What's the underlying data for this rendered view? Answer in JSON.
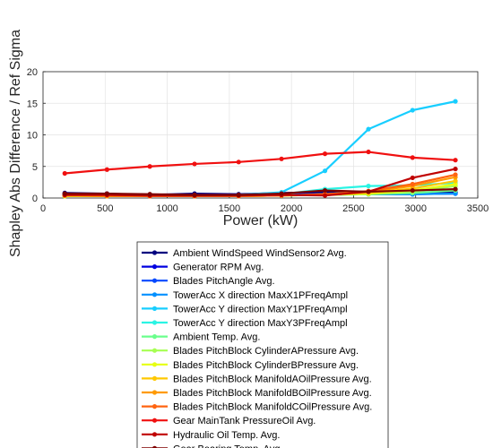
{
  "chart_data": {
    "type": "line",
    "xlabel": "Power (kW)",
    "ylabel": "Shapley Abs Difference / Ref Sigma",
    "xlim": [
      0,
      3500
    ],
    "ylim": [
      0,
      20
    ],
    "x_ticks": [
      0,
      500,
      1000,
      1500,
      2000,
      2500,
      3000,
      3500
    ],
    "y_ticks": [
      0,
      5,
      10,
      15,
      20
    ],
    "grid": true,
    "legend_position": "below",
    "x": [
      175,
      515,
      860,
      1220,
      1575,
      1920,
      2270,
      2620,
      2975,
      3320
    ],
    "series": [
      {
        "name": "Ambient WindSpeed WindSensor2 Avg.",
        "color": "#00007f",
        "values": [
          0.8,
          0.7,
          0.5,
          0.7,
          0.6,
          0.8,
          0.9,
          0.9,
          0.8,
          0.9
        ]
      },
      {
        "name": "Generator RPM Avg.",
        "color": "#0000e0",
        "values": [
          0.6,
          0.6,
          0.5,
          0.5,
          0.5,
          0.6,
          0.6,
          0.6,
          0.7,
          0.7
        ]
      },
      {
        "name": "Blades PitchAngle Avg.",
        "color": "#0048ff",
        "values": [
          0.5,
          0.5,
          0.4,
          0.5,
          0.5,
          0.5,
          0.6,
          0.6,
          0.6,
          0.7
        ]
      },
      {
        "name": "TowerAcc X direction MaxX1PFreqAmpl",
        "color": "#0090ff",
        "values": [
          0.4,
          0.4,
          0.3,
          0.4,
          0.4,
          0.5,
          0.5,
          0.6,
          0.6,
          0.7
        ]
      },
      {
        "name": "TowerAcc Y direction MaxY1PFreqAmpl",
        "color": "#18ceff",
        "values": [
          0.5,
          0.4,
          0.4,
          0.4,
          0.5,
          0.9,
          4.3,
          10.9,
          13.9,
          15.3
        ]
      },
      {
        "name": "TowerAcc Y direction MaxY3PFreqAmpl",
        "color": "#2af4e4",
        "values": [
          0.4,
          0.4,
          0.3,
          0.4,
          0.4,
          0.6,
          1.4,
          1.9,
          2.0,
          2.4
        ]
      },
      {
        "name": "Ambient Temp. Avg.",
        "color": "#6aff8c",
        "values": [
          0.3,
          0.3,
          0.3,
          0.3,
          0.3,
          0.4,
          0.5,
          0.6,
          0.8,
          1.2
        ]
      },
      {
        "name": "Blades PitchBlock CylinderAPressure Avg.",
        "color": "#a6ff52",
        "values": [
          0.3,
          0.3,
          0.3,
          0.3,
          0.3,
          0.4,
          0.5,
          0.6,
          1.0,
          1.9
        ]
      },
      {
        "name": "Blades PitchBlock CylinderBPressure Avg.",
        "color": "#e6ff12",
        "values": [
          0.3,
          0.3,
          0.3,
          0.3,
          0.3,
          0.4,
          0.5,
          0.7,
          1.2,
          2.2
        ]
      },
      {
        "name": "Blades PitchBlock ManifoldAOilPressure Avg.",
        "color": "#ffc800",
        "values": [
          0.4,
          0.3,
          0.3,
          0.3,
          0.3,
          0.4,
          0.5,
          0.8,
          1.5,
          2.7
        ]
      },
      {
        "name": "Blades PitchBlock ManifoldBOilPressure Avg.",
        "color": "#ff9a00",
        "values": [
          0.4,
          0.3,
          0.3,
          0.3,
          0.3,
          0.4,
          0.6,
          1.0,
          1.9,
          3.3
        ]
      },
      {
        "name": "Blades PitchBlock ManifoldCOilPressure Avg.",
        "color": "#ff6410",
        "values": [
          0.4,
          0.4,
          0.3,
          0.3,
          0.3,
          0.4,
          0.6,
          1.1,
          2.2,
          3.7
        ]
      },
      {
        "name": "Gear MainTank PressureOil Avg.",
        "color": "#f01010",
        "values": [
          3.9,
          4.5,
          5.0,
          5.4,
          5.7,
          6.2,
          7.0,
          7.3,
          6.4,
          6.0
        ]
      },
      {
        "name": "Hydraulic Oil Temp. Avg.",
        "color": "#c00000",
        "values": [
          0.5,
          0.5,
          0.4,
          0.4,
          0.4,
          0.5,
          0.4,
          1.0,
          3.2,
          4.6
        ]
      },
      {
        "name": "Gear Bearing Temp. Avg.",
        "color": "#800000",
        "values": [
          0.7,
          0.7,
          0.6,
          0.5,
          0.5,
          0.7,
          1.2,
          1.0,
          1.2,
          1.4
        ]
      }
    ]
  }
}
